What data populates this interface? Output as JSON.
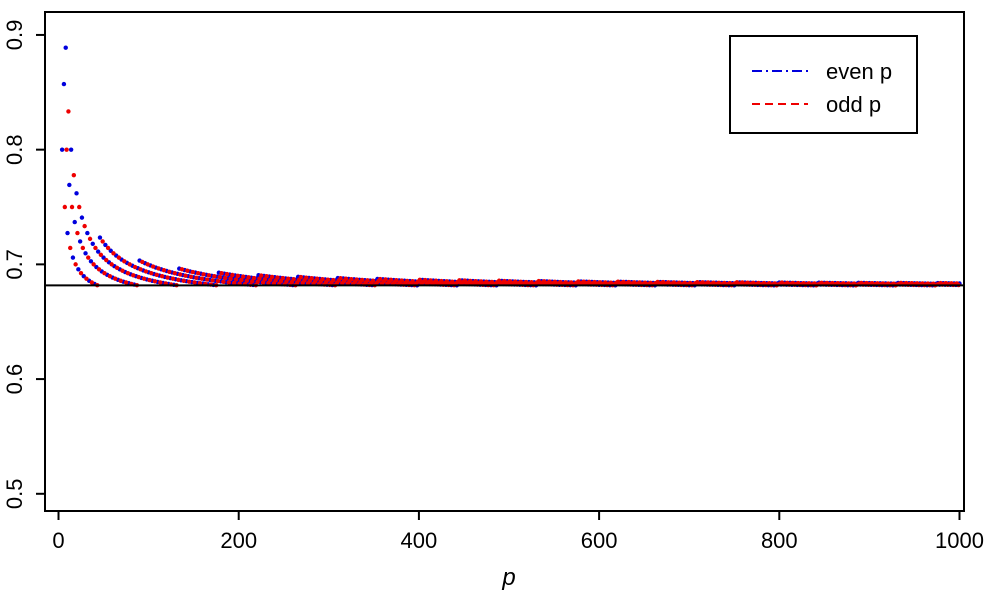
{
  "chart_data": {
    "type": "scatter",
    "title": "",
    "xlabel": "p",
    "ylabel": "",
    "xlim": [
      -15,
      1005
    ],
    "ylim": [
      0.485,
      0.92
    ],
    "x_ticks": [
      "0",
      "200",
      "400",
      "600",
      "800",
      "1000"
    ],
    "y_ticks": [
      "0.5",
      "0.6",
      "0.7",
      "0.8",
      "0.9"
    ],
    "reference_line": {
      "y": 0.6817
    },
    "legend": {
      "position": "top-right",
      "entries": [
        "even p",
        "odd p"
      ]
    },
    "series": [
      {
        "name": "even p",
        "color": "#0000dd",
        "linestyle": "dotdash",
        "parity": "even",
        "x_range": [
          2,
          1000
        ]
      },
      {
        "name": "odd p",
        "color": "#ee0000",
        "linestyle": "dashed",
        "parity": "odd",
        "x_range": [
          1,
          999
        ]
      }
    ]
  }
}
